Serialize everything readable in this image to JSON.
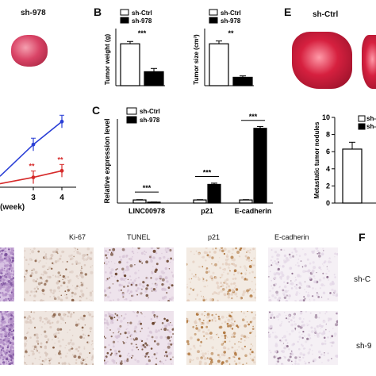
{
  "panel_a": {
    "sample_label": "sh-978",
    "xlabel": "(week)",
    "ticks": [
      "3",
      "4"
    ],
    "sig": [
      "**",
      "**"
    ]
  },
  "panel_b": {
    "letter": "B",
    "legend": [
      "sh-Ctrl",
      "sh-978"
    ],
    "weight_ylabel": "Tumor weight (g)",
    "size_ylabel": "Tumor size (cm³)",
    "weight_sig": "***",
    "size_sig": "**"
  },
  "panel_c": {
    "letter": "C",
    "legend": [
      "sh-Ctrl",
      "sh-978"
    ],
    "ylabel": "Relative expression level",
    "sig": [
      "***",
      "***",
      "***"
    ]
  },
  "panel_e": {
    "letter": "E",
    "sample_label": "sh-Ctrl",
    "ylabel": "Metastatic tumor nodules",
    "legend": [
      "sh-",
      "sh-"
    ],
    "yticks": [
      "10",
      "8",
      "6",
      "4",
      "2",
      "0"
    ]
  },
  "panel_d": {
    "headers": [
      "Ki-67",
      "TUNEL",
      "p21",
      "E-cadherin"
    ]
  },
  "panel_f": {
    "letter": "F",
    "row_labels": [
      "sh-C",
      "sh-9"
    ]
  },
  "colors": {
    "ctrl": "#ffffff",
    "sh978": "#000000",
    "line_ctrl": "#2a3fd6",
    "line_978": "#d62a2a"
  },
  "chart_data": [
    {
      "type": "line",
      "x": [
        "3",
        "4"
      ],
      "xlabel": "(week)",
      "series": [
        {
          "values": [
            1.3,
            2.0
          ]
        },
        {
          "values": [
            0.3,
            0.5
          ]
        }
      ],
      "annotations": [
        "**",
        "**"
      ]
    },
    {
      "type": "bar",
      "categories": [
        "sh-Ctrl",
        "sh-978"
      ],
      "values": [
        0.9,
        0.3
      ],
      "errors": [
        0.05,
        0.07
      ],
      "ylabel": "Tumor weight (g)",
      "annotations": [
        "***"
      ]
    },
    {
      "type": "bar",
      "categories": [
        "sh-Ctrl",
        "sh-978"
      ],
      "values": [
        1.5,
        0.3
      ],
      "errors": [
        0.1,
        0.05
      ],
      "ylabel": "Tumor size (cm³)",
      "annotations": [
        "**"
      ]
    },
    {
      "type": "bar",
      "categories": [
        "LINC00978",
        "p21",
        "E-cadherin"
      ],
      "series": [
        {
          "name": "sh-Ctrl",
          "values": [
            1.0,
            1.0,
            1.0
          ],
          "errors": [
            0.1,
            0.1,
            0.1
          ]
        },
        {
          "name": "sh-978",
          "values": [
            0.3,
            6.0,
            24.0
          ],
          "errors": [
            0.05,
            0.4,
            0.6
          ]
        }
      ],
      "ylabel": "Relative expression level",
      "annotations": [
        "***",
        "***",
        "***"
      ]
    },
    {
      "type": "bar",
      "categories": [
        "sh-Ctrl"
      ],
      "values": [
        6.3
      ],
      "errors": [
        0.8
      ],
      "ylabel": "Metastatic tumor nodules",
      "ylim": [
        0,
        10
      ],
      "yticks": [
        0,
        2,
        4,
        6,
        8,
        10
      ]
    }
  ]
}
